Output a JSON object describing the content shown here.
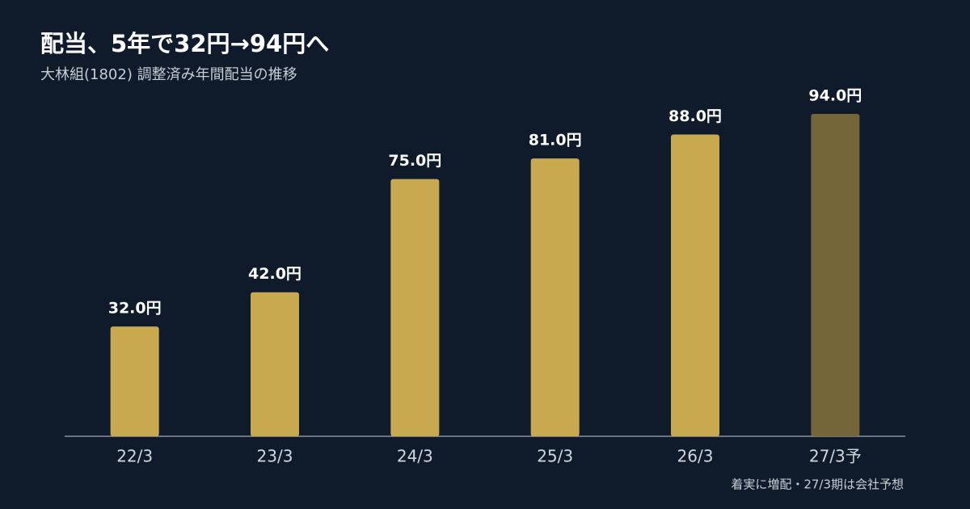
{
  "chart_data": {
    "type": "bar",
    "title": "配当、5年で32円→94円へ",
    "subtitle": "大林組(1802) 調整済み年間配当の推移",
    "categories": [
      "22/3",
      "23/3",
      "24/3",
      "25/3",
      "26/3",
      "27/3予"
    ],
    "values": [
      32,
      42,
      75,
      81,
      88,
      94
    ],
    "value_labels": [
      "32.0円",
      "42.0円",
      "75.0円",
      "81.0円",
      "88.0円",
      "94.0円"
    ],
    "colors": [
      "#c9a94f",
      "#c9a94f",
      "#c9a94f",
      "#c9a94f",
      "#c9a94f",
      "#75663a"
    ],
    "note": "着実に増配・27/3期は会社予想"
  }
}
